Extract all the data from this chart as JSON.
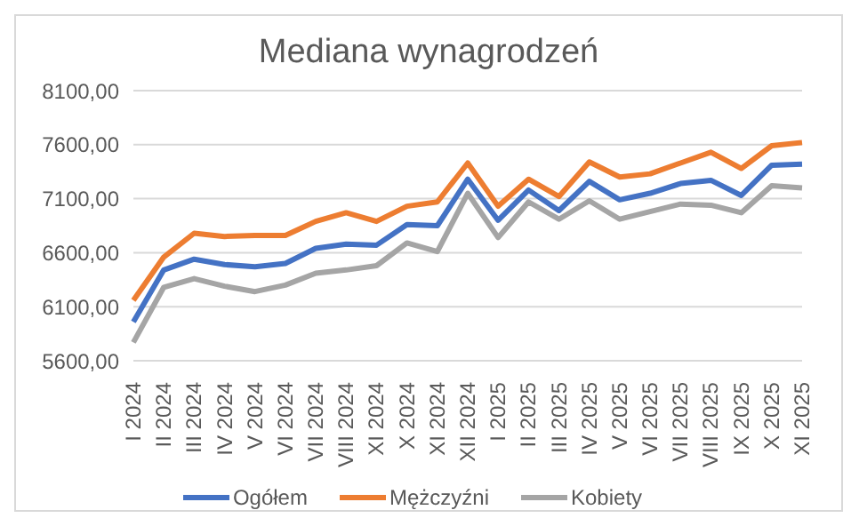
{
  "chart_data": {
    "type": "line",
    "title": "Mediana wynagrodzeń",
    "categories": [
      "I 2024",
      "II 2024",
      "III 2024",
      "IV 2024",
      "V 2024",
      "VI 2024",
      "VII 2024",
      "VIII 2024",
      "XI 2024",
      "X 2024",
      "XI 2024",
      "XII 2024",
      "I 2025",
      "II 2025",
      "III 2025",
      "IV 2025",
      "V 2025",
      "VI 2025",
      "VII 2025",
      "VIII 2025",
      "IX 2025",
      "X 2025",
      "XI 2025"
    ],
    "series": [
      {
        "name": "Ogółem",
        "color": "#4472c4",
        "values": [
          5960,
          6440,
          6540,
          6490,
          6470,
          6500,
          6640,
          6680,
          6670,
          6860,
          6850,
          7280,
          6900,
          7180,
          6990,
          7260,
          7090,
          7150,
          7240,
          7270,
          7130,
          7410,
          7420
        ]
      },
      {
        "name": "Mężczyźni",
        "color": "#ed7d31",
        "values": [
          6160,
          6560,
          6780,
          6750,
          6760,
          6760,
          6890,
          6970,
          6890,
          7030,
          7070,
          7430,
          7030,
          7280,
          7120,
          7440,
          7300,
          7330,
          7430,
          7530,
          7380,
          7590,
          7620
        ]
      },
      {
        "name": "Kobiety",
        "color": "#a5a5a5",
        "values": [
          5770,
          6280,
          6360,
          6290,
          6240,
          6300,
          6410,
          6440,
          6480,
          6690,
          6610,
          7150,
          6740,
          7070,
          6910,
          7080,
          6910,
          6980,
          7050,
          7040,
          6970,
          7220,
          7200
        ]
      }
    ],
    "ylim": [
      5600,
      8100
    ],
    "yticks": [
      {
        "value": 5600,
        "label": "5600,00"
      },
      {
        "value": 6100,
        "label": "6100,00"
      },
      {
        "value": 6600,
        "label": "6600,00"
      },
      {
        "value": 7100,
        "label": "7100,00"
      },
      {
        "value": 7600,
        "label": "7600,00"
      },
      {
        "value": 8100,
        "label": "8100,00"
      }
    ],
    "grid": "y",
    "legend": "bottom",
    "marker": "none",
    "line_style": "solid"
  }
}
